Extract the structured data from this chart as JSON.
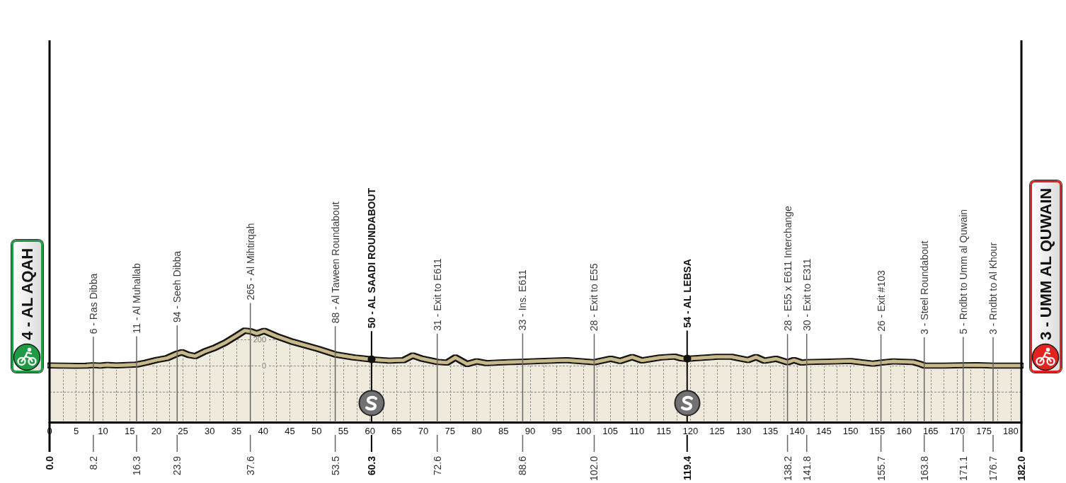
{
  "chart_data": {
    "type": "area",
    "color": "#c8b98a",
    "marker": "none",
    "grid": true,
    "x": [
      0,
      2,
      5,
      7,
      8.2,
      9.5,
      10.8,
      12.5,
      16.3,
      18,
      20,
      22,
      23.9,
      24.8,
      26,
      27.3,
      29,
      31,
      33,
      35,
      36.5,
      37.6,
      38.8,
      40.2,
      42.5,
      45.5,
      50.3,
      53.5,
      57,
      60.3,
      63.6,
      66.3,
      68,
      69.8,
      72.6,
      74.4,
      76,
      78.2,
      80,
      81.8,
      85.3,
      88.6,
      92,
      96.8,
      102,
      105.1,
      106.9,
      109.1,
      110.9,
      114.4,
      117,
      118.3,
      119.4,
      120.6,
      125,
      127.7,
      130.8,
      132.3,
      133.9,
      136.1,
      138.2,
      139.4,
      140.9,
      141.8,
      145,
      150,
      154.2,
      155.7,
      158,
      161.7,
      163,
      163.8,
      167.4,
      171.1,
      173.6,
      176.7,
      182
    ],
    "values": [
      4,
      3,
      1,
      2,
      6,
      2,
      8,
      4,
      11,
      25,
      45,
      60,
      94,
      105,
      85,
      75,
      110,
      140,
      180,
      230,
      270,
      265,
      248,
      268,
      228,
      185,
      130,
      88,
      65,
      50,
      40,
      45,
      80,
      55,
      31,
      25,
      65,
      15,
      35,
      22,
      28,
      33,
      38,
      45,
      28,
      55,
      38,
      68,
      42,
      65,
      72,
      58,
      54,
      58,
      70,
      70,
      45,
      68,
      40,
      55,
      28,
      45,
      25,
      30,
      32,
      38,
      18,
      26,
      35,
      30,
      15,
      3,
      3,
      5,
      6,
      3,
      3
    ],
    "xlim": [
      0,
      182
    ],
    "xticks": [
      0,
      {
        "value": 2.5,
        "label": null
      },
      5,
      {
        "value": 7.5,
        "label": null
      },
      10,
      {
        "value": 12.5,
        "label": null
      },
      15,
      {
        "value": 17.5,
        "label": null
      },
      20,
      {
        "value": 22.5,
        "label": null
      },
      25,
      {
        "value": 27.5,
        "label": null
      },
      30,
      {
        "value": 32.5,
        "label": null
      },
      35,
      40,
      {
        "value": 42.5,
        "label": null
      },
      45,
      {
        "value": 47.5,
        "label": null
      },
      50,
      {
        "value": 52.5,
        "label": null
      },
      55,
      {
        "value": 57.5,
        "label": null
      },
      60,
      {
        "value": 62.5,
        "label": null
      },
      65,
      {
        "value": 67.5,
        "label": null
      },
      70,
      75,
      {
        "value": 77.5,
        "label": null
      },
      80,
      {
        "value": 82.5,
        "label": null
      },
      85,
      {
        "value": 87.5,
        "label": null
      },
      90,
      {
        "value": 92.5,
        "label": null
      },
      95,
      {
        "value": 97.5,
        "label": null
      },
      100,
      {
        "value": 102.5,
        "label": null
      },
      105,
      {
        "value": 107.5,
        "label": null
      },
      110,
      {
        "value": 112.5,
        "label": null
      },
      115,
      {
        "value": 117.5,
        "label": null
      },
      120,
      {
        "value": 122.5,
        "label": null
      },
      125,
      {
        "value": 127.5,
        "label": null
      },
      130,
      {
        "value": 132.5,
        "label": null
      },
      135,
      {
        "value": 137.5,
        "label": null
      },
      140,
      {
        "value": 142.5,
        "label": null
      },
      145,
      {
        "value": 147.5,
        "label": null
      },
      150,
      {
        "value": 152.5,
        "label": null
      },
      155,
      {
        "value": 157.5,
        "label": null
      },
      160,
      {
        "value": 162.5,
        "label": null
      },
      165,
      {
        "value": 167.5,
        "label": null
      },
      170,
      {
        "value": 172.5,
        "label": null
      },
      175,
      {
        "value": 177.5,
        "label": null
      },
      180
    ],
    "ylim": [
      -430,
      2490
    ],
    "yticks": [
      {
        "value": -200,
        "label": null
      },
      0,
      200
    ],
    "bands": [
      {
        "axis": "y",
        "from": -430,
        "to": 0,
        "color": "#efeadc"
      }
    ],
    "x2lim": [
      0,
      182
    ],
    "x2ticks": [
      {
        "value": 0,
        "label": "0.0"
      },
      8.2,
      16.3,
      23.9,
      37.6,
      53.5,
      60.3,
      72.6,
      88.6,
      {
        "value": 102,
        "label": "102.0"
      },
      119.4,
      138.2,
      141.8,
      155.7,
      163.8,
      171.1,
      176.7,
      {
        "value": 182,
        "label": "182.0"
      }
    ],
    "ref_lines": [
      {
        "axis": "x",
        "value": 0,
        "label": "4 - AL AQAH",
        "color": "#000000"
      },
      {
        "axis": "x",
        "value": 8.2,
        "label": "6 - Ras Dibba",
        "color": "#666666"
      },
      {
        "axis": "x",
        "value": 16.3,
        "label": "11 - Al Muhallab",
        "color": "#666666"
      },
      {
        "axis": "x",
        "value": 23.9,
        "label": "94 - Seeh Dibba",
        "color": "#666666"
      },
      {
        "axis": "x",
        "value": 37.6,
        "label": "265 - Al Mihtirqah",
        "color": "#666666"
      },
      {
        "axis": "x",
        "value": 53.5,
        "label": "88 - Al Taween Roundabout",
        "color": "#666666"
      },
      {
        "axis": "x",
        "value": 60.3,
        "label": "50 - AL SAADI ROUNDABOUT",
        "color": "#000000"
      },
      {
        "axis": "x",
        "value": 72.6,
        "label": "31 - Exit to E611",
        "color": "#666666"
      },
      {
        "axis": "x",
        "value": 88.6,
        "label": "33 - Ins. E611",
        "color": "#666666"
      },
      {
        "axis": "x",
        "value": 102,
        "label": "28 - Exit to E55",
        "color": "#666666"
      },
      {
        "axis": "x",
        "value": 119.4,
        "label": "54 - AL LEBSA",
        "color": "#000000"
      },
      {
        "axis": "x",
        "value": 138.2,
        "label": "28 - E55 x E611 Interchange",
        "color": "#666666"
      },
      {
        "axis": "x",
        "value": 141.8,
        "label": "30 - Exit to E311",
        "color": "#666666"
      },
      {
        "axis": "x",
        "value": 155.7,
        "label": "26 - Exit #103",
        "color": "#666666"
      },
      {
        "axis": "x",
        "value": 163.8,
        "label": "3 - Steel Roundabout",
        "color": "#666666"
      },
      {
        "axis": "x",
        "value": 171.1,
        "label": "5 - Rndbt to Umm al Quwain",
        "color": "#666666"
      },
      {
        "axis": "x",
        "value": 176.7,
        "label": "3 - Rndbt to Al Khour",
        "color": "#666666"
      },
      {
        "axis": "x",
        "value": 182,
        "label": "3 - UMM AL QUWAIN",
        "color": "#000000"
      }
    ]
  }
}
